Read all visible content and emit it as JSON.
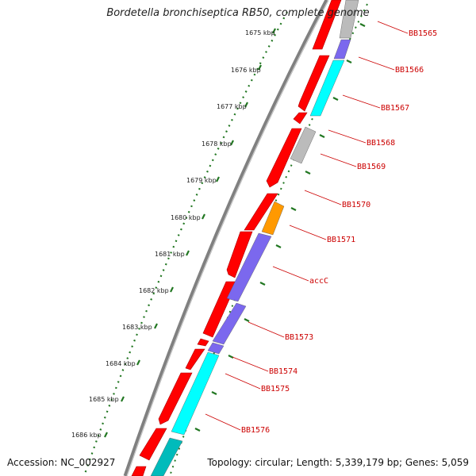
{
  "title": "Bordetella bronchiseptica RB50, complete genome",
  "accession": "Accession: NC_002927",
  "topology": "Topology: circular; Length: 5,339,179 bp; Genes: 5,059",
  "colors": {
    "cds_red": "#ff0000",
    "purple": "#7b68ee",
    "cyan": "#00ffff",
    "gray": "#bbbbbb",
    "orange": "#ff9900",
    "teal": "#00bbbb",
    "backbone": "#808080",
    "ticks": "#227722",
    "label": "#cc0000"
  },
  "kbp_ticks": [
    "1675 kbp",
    "1676 kbp",
    "1677 kbp",
    "1678 kbp",
    "1679 kbp",
    "1680 kbp",
    "1681 kbp",
    "1682 kbp",
    "1683 kbp",
    "1684 kbp",
    "1685 kbp",
    "1686 kbp"
  ],
  "genes": [
    "BB1565",
    "BB1566",
    "BB1567",
    "BB1568",
    "BB1569",
    "BB1570",
    "BB1571",
    "accC",
    "BB1573",
    "BB1574",
    "BB1575",
    "BB1576"
  ]
}
